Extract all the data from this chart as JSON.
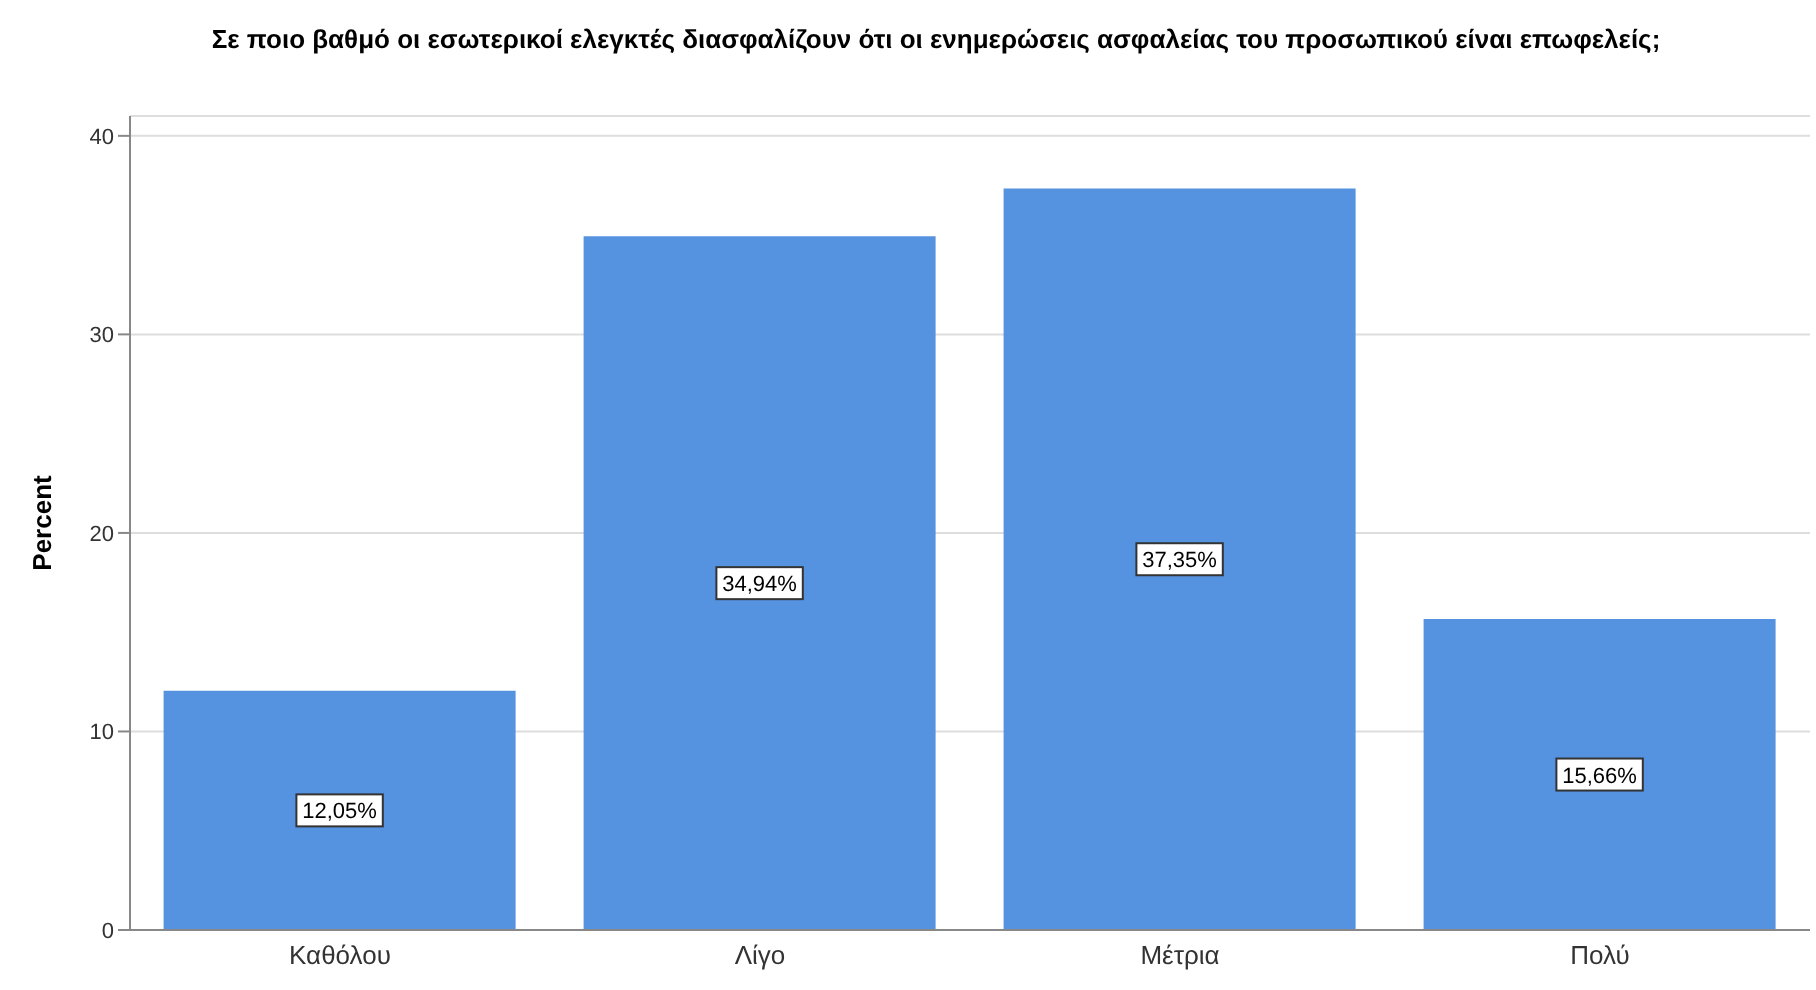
{
  "chart_data": {
    "type": "bar",
    "title": "Σε ποιο βαθμό οι εσωτερικοί ελεγκτές διασφαλίζουν ότι οι ενημερώσεις ασφαλείας του προσωπικού είναι επωφελείς;",
    "ylabel": "Percent",
    "categories": [
      "Καθόλου",
      "Λίγο",
      "Μέτρια",
      "Πολύ"
    ],
    "values": [
      12.05,
      34.94,
      37.35,
      15.66
    ],
    "value_labels": [
      "12,05%",
      "34,94%",
      "37,35%",
      "15,66%"
    ],
    "color": "#5592e0",
    "ylim": [
      0,
      41
    ],
    "yticks": [
      0,
      10,
      20,
      30,
      40
    ],
    "grid": "y"
  }
}
